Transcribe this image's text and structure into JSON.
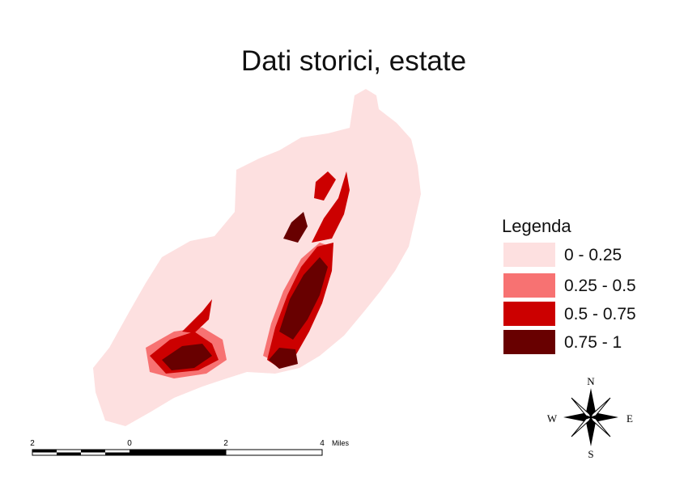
{
  "title": "Dati storici, estate",
  "legend": {
    "title": "Legenda",
    "items": [
      {
        "label": "0 - 0.25",
        "color": "#fde0e0"
      },
      {
        "label": "0.25 - 0.5",
        "color": "#f77272"
      },
      {
        "label": "0.5 - 0.75",
        "color": "#cc0000"
      },
      {
        "label": "0.75 - 1",
        "color": "#680000"
      }
    ]
  },
  "north_arrow": {
    "n": "N",
    "e": "E",
    "s": "S",
    "w": "W"
  },
  "scale_bar": {
    "labels": [
      "2",
      "0",
      "2",
      "4"
    ],
    "unit": "Miles"
  }
}
